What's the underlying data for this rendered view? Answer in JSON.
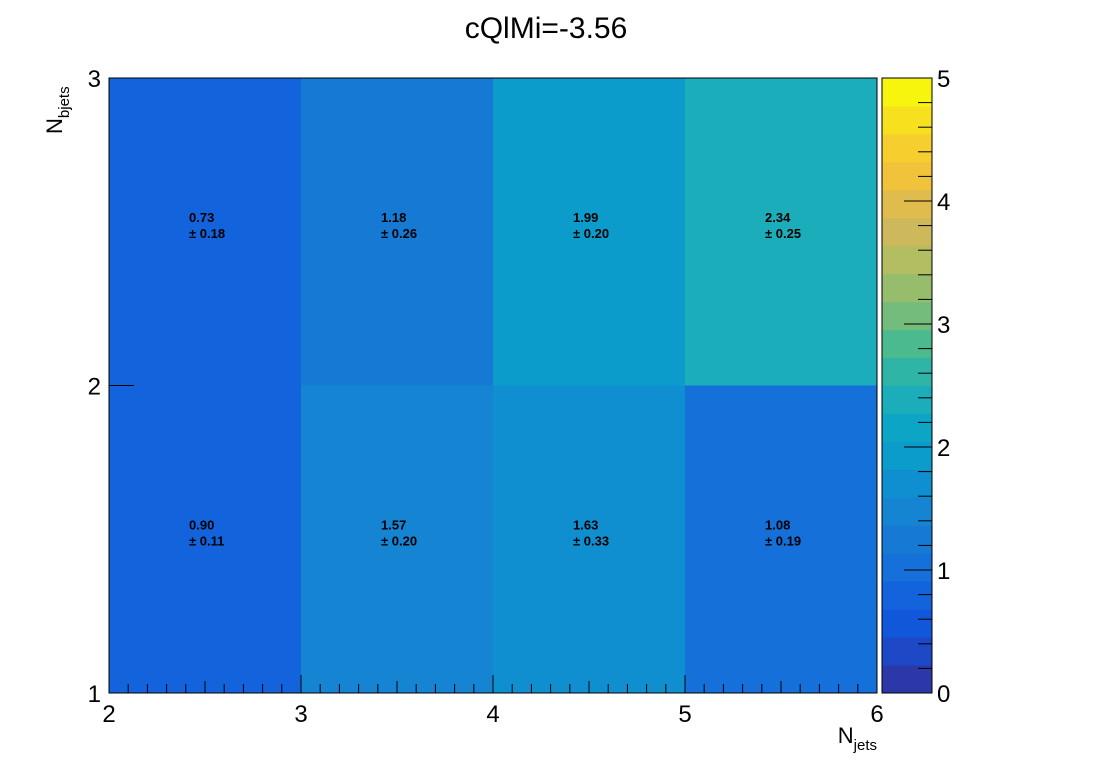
{
  "chart_data": {
    "type": "heatmap",
    "title": "cQlMi=-3.56",
    "xlabel": {
      "base": "N",
      "sub": "jets"
    },
    "ylabel": {
      "base": "N",
      "sub": "bjets"
    },
    "x_edges": [
      2,
      3,
      4,
      5,
      6
    ],
    "y_edges": [
      1,
      2,
      3
    ],
    "xlim": [
      2,
      6
    ],
    "ylim": [
      1,
      3
    ],
    "x_ticks": [
      "2",
      "3",
      "4",
      "5",
      "6"
    ],
    "y_ticks": [
      "1",
      "2",
      "3"
    ],
    "zlim": [
      0,
      5
    ],
    "z_ticks": [
      "0",
      "1",
      "2",
      "3",
      "4",
      "5"
    ],
    "cells": [
      {
        "x": [
          2,
          3
        ],
        "y": [
          1,
          2
        ],
        "value": 0.9,
        "value_text": "0.90",
        "error_text": "± 0.11"
      },
      {
        "x": [
          3,
          4
        ],
        "y": [
          1,
          2
        ],
        "value": 1.57,
        "value_text": "1.57",
        "error_text": "± 0.20"
      },
      {
        "x": [
          4,
          5
        ],
        "y": [
          1,
          2
        ],
        "value": 1.63,
        "value_text": "1.63",
        "error_text": "± 0.33"
      },
      {
        "x": [
          5,
          6
        ],
        "y": [
          1,
          2
        ],
        "value": 1.08,
        "value_text": "1.08",
        "error_text": "± 0.19"
      },
      {
        "x": [
          2,
          3
        ],
        "y": [
          2,
          3
        ],
        "value": 0.73,
        "value_text": "0.73",
        "error_text": "± 0.18"
      },
      {
        "x": [
          3,
          4
        ],
        "y": [
          2,
          3
        ],
        "value": 1.18,
        "value_text": "1.18",
        "error_text": "± 0.26"
      },
      {
        "x": [
          4,
          5
        ],
        "y": [
          2,
          3
        ],
        "value": 1.99,
        "value_text": "1.99",
        "error_text": "± 0.20"
      },
      {
        "x": [
          5,
          6
        ],
        "y": [
          2,
          3
        ],
        "value": 2.34,
        "value_text": "2.34",
        "error_text": "± 0.25"
      }
    ],
    "colorscale": [
      "#2c37a8",
      "#1d48c6",
      "#1157d9",
      "#1363dc",
      "#1570d9",
      "#167ad5",
      "#1484d3",
      "#108fd0",
      "#0b9ccc",
      "#0ca5c5",
      "#1cadba",
      "#2eb5a6",
      "#4cba8f",
      "#74bc7b",
      "#96bd6b",
      "#b3bd62",
      "#cdb85b",
      "#e0bb4d",
      "#f1c33b",
      "#f6cf2e",
      "#f7e11f",
      "#f7f50e"
    ],
    "grid": false,
    "legend": "colorbar-right"
  }
}
